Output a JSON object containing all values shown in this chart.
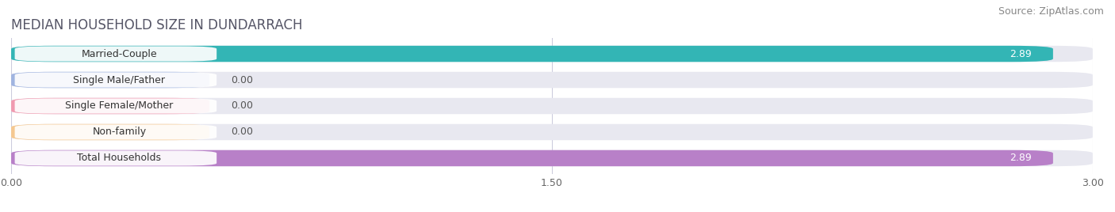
{
  "title": "MEDIAN HOUSEHOLD SIZE IN DUNDARRACH",
  "source": "Source: ZipAtlas.com",
  "categories": [
    "Married-Couple",
    "Single Male/Father",
    "Single Female/Mother",
    "Non-family",
    "Total Households"
  ],
  "values": [
    2.89,
    0.0,
    0.0,
    0.0,
    2.89
  ],
  "bar_colors": [
    "#33b5b5",
    "#a0b4e0",
    "#f09ab0",
    "#f5c890",
    "#b880c8"
  ],
  "bar_bg_color": "#e8e8f0",
  "stub_values": [
    0.0,
    0.0,
    0.0
  ],
  "stub_color_indices": [
    1,
    2,
    3
  ],
  "xlim": [
    0,
    3.0
  ],
  "xticks": [
    0.0,
    1.5,
    3.0
  ],
  "xtick_labels": [
    "0.00",
    "1.50",
    "3.00"
  ],
  "value_labels": [
    "2.89",
    "0.00",
    "0.00",
    "0.00",
    "2.89"
  ],
  "title_fontsize": 12,
  "source_fontsize": 9,
  "label_fontsize": 9,
  "value_fontsize": 9,
  "bar_height": 0.62,
  "figsize": [
    14.06,
    2.68
  ],
  "dpi": 100,
  "background_color": "#ffffff",
  "bar_row_bg": "#f0f0f5",
  "grid_color": "#ccccdd",
  "title_color": "#555566",
  "source_color": "#888888",
  "label_text_color": "#333333",
  "value_color_on_bar": "#ffffff",
  "value_color_off_bar": "#555555"
}
